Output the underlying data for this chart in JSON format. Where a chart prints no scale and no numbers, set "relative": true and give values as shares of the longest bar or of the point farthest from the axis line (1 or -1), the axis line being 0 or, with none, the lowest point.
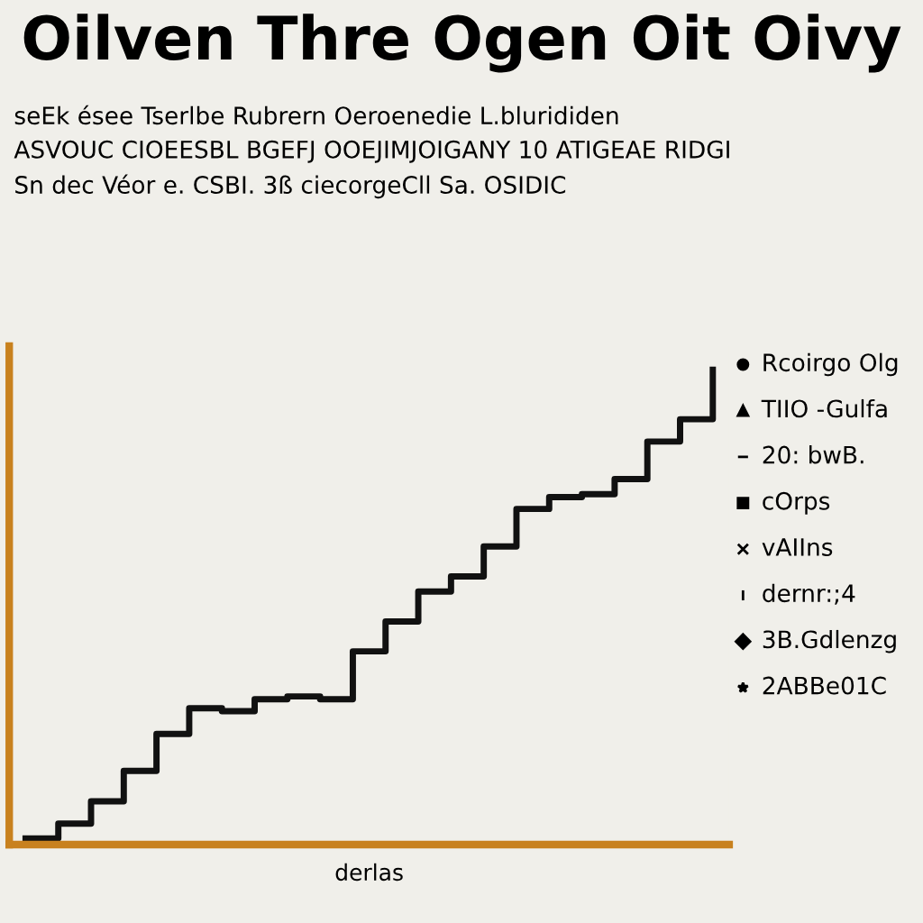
{
  "chart_data": {
    "type": "step",
    "title": "Oilven Thre Ogen Oit Oivy",
    "subtitle": "seEk ésee Tserlbe Rubrern Oeroenedie L.blurididen\nASVOUC CIOEESBL BGEFJ OOEJIMJOIGANY 10 ATIGEAE RIDGI\nSn dec Véor e. CSBI. 3ß ciecorgeCll Sa. OSIDIC",
    "xlabel": "derlas",
    "annotations": [
      "Rcoirgo Olg",
      "TIIO -Gulfa",
      "20: bwB.",
      "cOrps",
      "vAIIns",
      "dernr:;4",
      "3B.Gdlenzg",
      "2ABBe01C"
    ],
    "relative": true,
    "categories": [
      null,
      null,
      null,
      null,
      null,
      null,
      null,
      null,
      null,
      null,
      null,
      null,
      null,
      null,
      null,
      null,
      null,
      null,
      null,
      null,
      null,
      null
    ],
    "values": [
      0.013,
      0.044,
      0.091,
      0.155,
      0.233,
      0.287,
      0.281,
      0.306,
      0.312,
      0.306,
      0.407,
      0.47,
      0.533,
      0.565,
      0.628,
      0.707,
      0.732,
      0.738,
      0.77,
      0.849,
      0.896,
      1.0
    ],
    "color": "#111111",
    "grid": false,
    "legend": false
  }
}
